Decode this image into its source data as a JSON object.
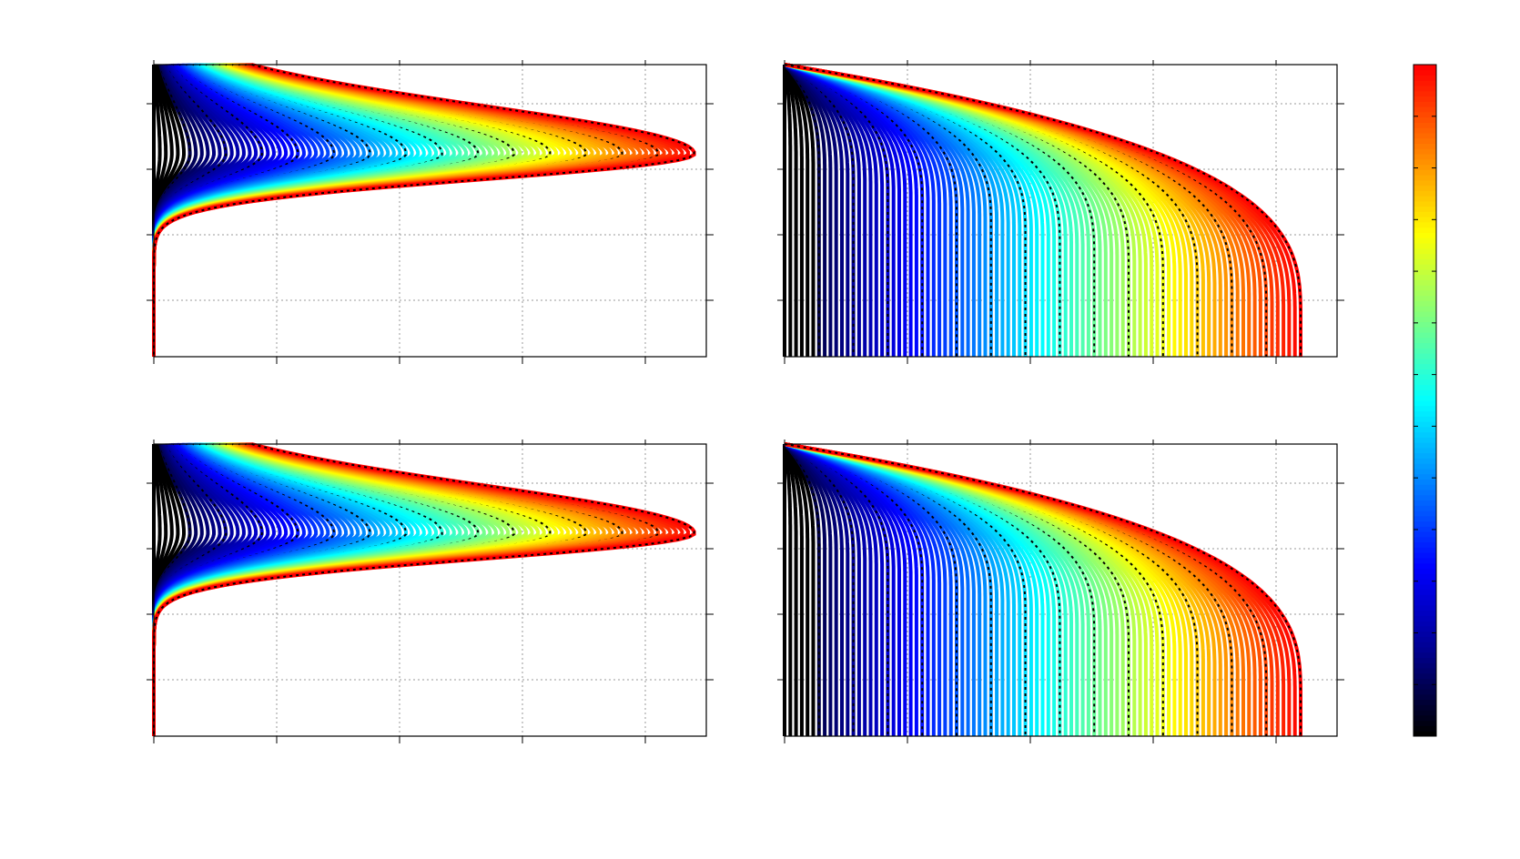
{
  "chart_data": [
    {
      "type": "line",
      "grid": true,
      "log_y": true
    },
    {
      "type": "line",
      "grid": true,
      "log_y": true
    },
    {
      "type": "line",
      "grid": true,
      "log_y": true
    },
    {
      "type": "line",
      "grid": true,
      "log_y": true
    }
  ],
  "colorbar": {
    "colors": [
      "#000000",
      "#00008f",
      "#0000ff",
      "#0080ff",
      "#00ffff",
      "#80ff80",
      "#ffff00",
      "#ff8000",
      "#ff0000"
    ]
  }
}
